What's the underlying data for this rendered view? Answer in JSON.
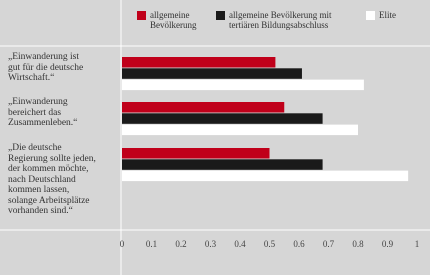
{
  "chart_data": {
    "type": "hbar",
    "categories": [
      "„Einwanderung ist\ngut für die deutsche\nWirtschaft.“",
      "„Einwanderung\nbereichert das\nZusammenleben.“",
      "„Die deutsche\nRegierung sollte jeden,\nder kommen möchte,\nnach Deutschland\nkommen lassen,\nsolange Arbeitsplätze\nvorhanden sind.“"
    ],
    "series": [
      {
        "name": "allgemeine Bevölkerung",
        "color": "#c0001a",
        "values": [
          0.52,
          0.55,
          0.5
        ]
      },
      {
        "name": "allgemeine Bevölkerung mit tertiären Bildungsabschluss",
        "color": "#1a1a1a",
        "values": [
          0.61,
          0.68,
          0.68
        ]
      },
      {
        "name": "Elite",
        "color": "#ffffff",
        "values": [
          0.82,
          0.8,
          0.97
        ]
      }
    ],
    "xlim": [
      0,
      1
    ],
    "xticks": [
      0,
      0.1,
      0.2,
      0.3,
      0.4,
      0.5,
      0.6,
      0.7,
      0.8,
      0.9,
      1
    ]
  }
}
